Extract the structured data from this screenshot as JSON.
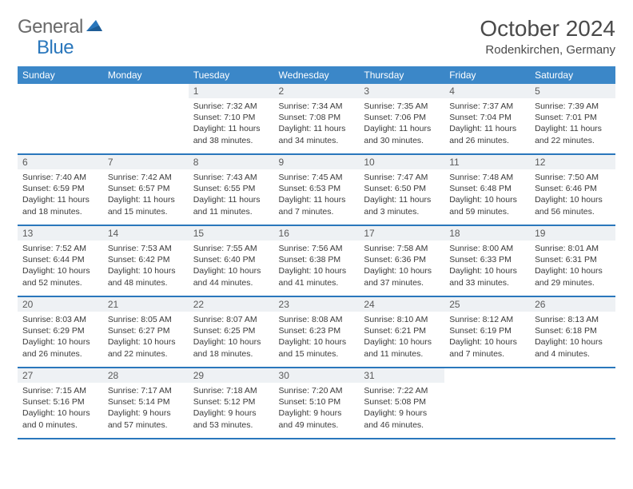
{
  "logo": {
    "part1": "General",
    "part2": "Blue"
  },
  "title": "October 2024",
  "location": "Rodenkirchen, Germany",
  "colors": {
    "header_bg": "#3b87c8",
    "rule": "#2a77bc",
    "daynum_bg": "#eef1f4",
    "logo_gray": "#6a6a6a",
    "logo_blue": "#2a77bc"
  },
  "day_names": [
    "Sunday",
    "Monday",
    "Tuesday",
    "Wednesday",
    "Thursday",
    "Friday",
    "Saturday"
  ],
  "weeks": [
    [
      null,
      null,
      {
        "n": "1",
        "sr": "Sunrise: 7:32 AM",
        "ss": "Sunset: 7:10 PM",
        "dl": "Daylight: 11 hours and 38 minutes."
      },
      {
        "n": "2",
        "sr": "Sunrise: 7:34 AM",
        "ss": "Sunset: 7:08 PM",
        "dl": "Daylight: 11 hours and 34 minutes."
      },
      {
        "n": "3",
        "sr": "Sunrise: 7:35 AM",
        "ss": "Sunset: 7:06 PM",
        "dl": "Daylight: 11 hours and 30 minutes."
      },
      {
        "n": "4",
        "sr": "Sunrise: 7:37 AM",
        "ss": "Sunset: 7:04 PM",
        "dl": "Daylight: 11 hours and 26 minutes."
      },
      {
        "n": "5",
        "sr": "Sunrise: 7:39 AM",
        "ss": "Sunset: 7:01 PM",
        "dl": "Daylight: 11 hours and 22 minutes."
      }
    ],
    [
      {
        "n": "6",
        "sr": "Sunrise: 7:40 AM",
        "ss": "Sunset: 6:59 PM",
        "dl": "Daylight: 11 hours and 18 minutes."
      },
      {
        "n": "7",
        "sr": "Sunrise: 7:42 AM",
        "ss": "Sunset: 6:57 PM",
        "dl": "Daylight: 11 hours and 15 minutes."
      },
      {
        "n": "8",
        "sr": "Sunrise: 7:43 AM",
        "ss": "Sunset: 6:55 PM",
        "dl": "Daylight: 11 hours and 11 minutes."
      },
      {
        "n": "9",
        "sr": "Sunrise: 7:45 AM",
        "ss": "Sunset: 6:53 PM",
        "dl": "Daylight: 11 hours and 7 minutes."
      },
      {
        "n": "10",
        "sr": "Sunrise: 7:47 AM",
        "ss": "Sunset: 6:50 PM",
        "dl": "Daylight: 11 hours and 3 minutes."
      },
      {
        "n": "11",
        "sr": "Sunrise: 7:48 AM",
        "ss": "Sunset: 6:48 PM",
        "dl": "Daylight: 10 hours and 59 minutes."
      },
      {
        "n": "12",
        "sr": "Sunrise: 7:50 AM",
        "ss": "Sunset: 6:46 PM",
        "dl": "Daylight: 10 hours and 56 minutes."
      }
    ],
    [
      {
        "n": "13",
        "sr": "Sunrise: 7:52 AM",
        "ss": "Sunset: 6:44 PM",
        "dl": "Daylight: 10 hours and 52 minutes."
      },
      {
        "n": "14",
        "sr": "Sunrise: 7:53 AM",
        "ss": "Sunset: 6:42 PM",
        "dl": "Daylight: 10 hours and 48 minutes."
      },
      {
        "n": "15",
        "sr": "Sunrise: 7:55 AM",
        "ss": "Sunset: 6:40 PM",
        "dl": "Daylight: 10 hours and 44 minutes."
      },
      {
        "n": "16",
        "sr": "Sunrise: 7:56 AM",
        "ss": "Sunset: 6:38 PM",
        "dl": "Daylight: 10 hours and 41 minutes."
      },
      {
        "n": "17",
        "sr": "Sunrise: 7:58 AM",
        "ss": "Sunset: 6:36 PM",
        "dl": "Daylight: 10 hours and 37 minutes."
      },
      {
        "n": "18",
        "sr": "Sunrise: 8:00 AM",
        "ss": "Sunset: 6:33 PM",
        "dl": "Daylight: 10 hours and 33 minutes."
      },
      {
        "n": "19",
        "sr": "Sunrise: 8:01 AM",
        "ss": "Sunset: 6:31 PM",
        "dl": "Daylight: 10 hours and 29 minutes."
      }
    ],
    [
      {
        "n": "20",
        "sr": "Sunrise: 8:03 AM",
        "ss": "Sunset: 6:29 PM",
        "dl": "Daylight: 10 hours and 26 minutes."
      },
      {
        "n": "21",
        "sr": "Sunrise: 8:05 AM",
        "ss": "Sunset: 6:27 PM",
        "dl": "Daylight: 10 hours and 22 minutes."
      },
      {
        "n": "22",
        "sr": "Sunrise: 8:07 AM",
        "ss": "Sunset: 6:25 PM",
        "dl": "Daylight: 10 hours and 18 minutes."
      },
      {
        "n": "23",
        "sr": "Sunrise: 8:08 AM",
        "ss": "Sunset: 6:23 PM",
        "dl": "Daylight: 10 hours and 15 minutes."
      },
      {
        "n": "24",
        "sr": "Sunrise: 8:10 AM",
        "ss": "Sunset: 6:21 PM",
        "dl": "Daylight: 10 hours and 11 minutes."
      },
      {
        "n": "25",
        "sr": "Sunrise: 8:12 AM",
        "ss": "Sunset: 6:19 PM",
        "dl": "Daylight: 10 hours and 7 minutes."
      },
      {
        "n": "26",
        "sr": "Sunrise: 8:13 AM",
        "ss": "Sunset: 6:18 PM",
        "dl": "Daylight: 10 hours and 4 minutes."
      }
    ],
    [
      {
        "n": "27",
        "sr": "Sunrise: 7:15 AM",
        "ss": "Sunset: 5:16 PM",
        "dl": "Daylight: 10 hours and 0 minutes."
      },
      {
        "n": "28",
        "sr": "Sunrise: 7:17 AM",
        "ss": "Sunset: 5:14 PM",
        "dl": "Daylight: 9 hours and 57 minutes."
      },
      {
        "n": "29",
        "sr": "Sunrise: 7:18 AM",
        "ss": "Sunset: 5:12 PM",
        "dl": "Daylight: 9 hours and 53 minutes."
      },
      {
        "n": "30",
        "sr": "Sunrise: 7:20 AM",
        "ss": "Sunset: 5:10 PM",
        "dl": "Daylight: 9 hours and 49 minutes."
      },
      {
        "n": "31",
        "sr": "Sunrise: 7:22 AM",
        "ss": "Sunset: 5:08 PM",
        "dl": "Daylight: 9 hours and 46 minutes."
      },
      null,
      null
    ]
  ]
}
